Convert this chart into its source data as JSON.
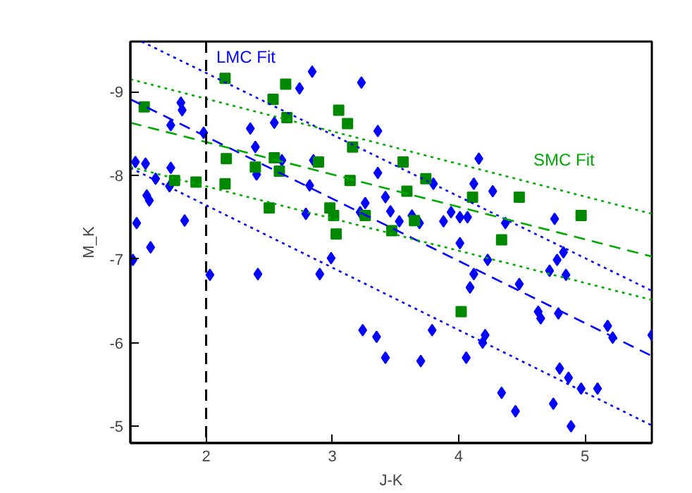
{
  "chart_data": {
    "type": "scatter",
    "xlabel": "J-K",
    "ylabel": "M_K",
    "xlim": [
      1.4,
      5.53
    ],
    "ylim": [
      -4.8,
      -9.6
    ],
    "xticks": [
      2,
      3,
      4,
      5
    ],
    "yticks": [
      -9,
      -8,
      -7,
      -6,
      -5
    ],
    "grid": false,
    "legend": false,
    "series": [
      {
        "marker": "diamond",
        "color": "#0000ff",
        "x": [
          2.84,
          2.74,
          3.23,
          1.8,
          1.81,
          1.72,
          2.54,
          2.35,
          1.98,
          2.39,
          3.36,
          2.6,
          2.85,
          1.44,
          1.52,
          1.72,
          2.4,
          3.36,
          1.6,
          1.71,
          1.53,
          1.55,
          2.82,
          2.79,
          3.26,
          3.22,
          1.45,
          1.83,
          1.42,
          1.56,
          2.03,
          2.41,
          2.9,
          2.99,
          3.24,
          3.35,
          4.16,
          3.8,
          4.12,
          4.27,
          3.42,
          3.46,
          3.53,
          3.63,
          3.69,
          3.88,
          3.94,
          4.01,
          4.07,
          4.37,
          4.76,
          4.01,
          4.83,
          4.78,
          4.23,
          4.72,
          4.12,
          4.85,
          4.09,
          4.48,
          4.63,
          4.65,
          4.79,
          5.18,
          5.22,
          5.53,
          3.79,
          3.42,
          3.7,
          4.06,
          4.21,
          4.19,
          4.8,
          4.87,
          4.97,
          5.1,
          4.34,
          4.75,
          4.45,
          4.89
        ],
        "values": [
          -9.24,
          -9.04,
          -9.11,
          -8.87,
          -8.78,
          -8.6,
          -8.63,
          -8.56,
          -8.51,
          -8.34,
          -8.53,
          -8.18,
          -8.18,
          -8.16,
          -8.14,
          -8.09,
          -8.01,
          -8.03,
          -7.96,
          -7.87,
          -7.76,
          -7.7,
          -7.88,
          -7.54,
          -7.67,
          -7.56,
          -7.43,
          -7.46,
          -6.99,
          -7.14,
          -6.81,
          -6.82,
          -6.82,
          -7.01,
          -6.15,
          -6.07,
          -8.2,
          -7.9,
          -7.9,
          -7.81,
          -7.74,
          -7.57,
          -7.45,
          -7.52,
          -7.43,
          -7.45,
          -7.56,
          -7.5,
          -7.5,
          -7.43,
          -7.48,
          -7.19,
          -7.08,
          -6.99,
          -6.99,
          -6.86,
          -6.82,
          -6.81,
          -6.66,
          -6.7,
          -6.37,
          -6.29,
          -6.35,
          -6.2,
          -6.06,
          -6.09,
          -6.15,
          -5.82,
          -5.78,
          -5.82,
          -6.09,
          -6.0,
          -5.69,
          -5.58,
          -5.45,
          -5.45,
          -5.4,
          -5.27,
          -5.18,
          -5.0
        ]
      },
      {
        "marker": "square",
        "color": "#008800",
        "x": [
          2.15,
          2.63,
          1.51,
          2.53,
          2.64,
          3.05,
          3.12,
          3.16,
          2.16,
          2.54,
          2.39,
          2.58,
          2.89,
          1.75,
          1.92,
          2.15,
          3.14,
          2.5,
          2.98,
          3.01,
          3.26,
          3.03,
          3.56,
          3.74,
          3.59,
          4.11,
          4.48,
          4.97,
          3.65,
          3.47,
          4.34,
          4.02
        ],
        "values": [
          -9.16,
          -9.09,
          -8.82,
          -8.91,
          -8.69,
          -8.78,
          -8.62,
          -8.34,
          -8.2,
          -8.21,
          -8.1,
          -8.05,
          -8.16,
          -7.94,
          -7.92,
          -7.9,
          -7.94,
          -7.61,
          -7.61,
          -7.52,
          -7.52,
          -7.3,
          -8.16,
          -7.96,
          -7.81,
          -7.74,
          -7.74,
          -7.52,
          -7.46,
          -7.34,
          -7.23,
          -6.37
        ]
      },
      {
        "type": "line",
        "name": "LMC Fit",
        "line_style": "dashed",
        "color": "#0000ff",
        "x": [
          1.4,
          5.53
        ],
        "values": [
          -8.91,
          -5.84
        ]
      },
      {
        "type": "line",
        "line_style": "dotted",
        "color": "#0000ff",
        "x": [
          1.49,
          5.53
        ],
        "values": [
          -9.6,
          -6.62
        ]
      },
      {
        "type": "line",
        "line_style": "dotted",
        "color": "#0000ff",
        "x": [
          1.4,
          5.53
        ],
        "values": [
          -8.09,
          -5.01
        ]
      },
      {
        "type": "line",
        "name": "SMC Fit",
        "line_style": "dashed",
        "color": "#00aa00",
        "x": [
          1.4,
          5.53
        ],
        "values": [
          -8.63,
          -7.03
        ]
      },
      {
        "type": "line",
        "line_style": "dotted",
        "color": "#00aa00",
        "x": [
          1.4,
          5.53
        ],
        "values": [
          -9.15,
          -7.54
        ]
      },
      {
        "type": "line",
        "line_style": "dotted",
        "color": "#00aa00",
        "x": [
          1.4,
          5.53
        ],
        "values": [
          -8.1,
          -6.51
        ]
      }
    ],
    "ref_lines": [
      {
        "axis": "x",
        "value": 2,
        "color": "#000000",
        "line_style": "dashed"
      }
    ]
  }
}
